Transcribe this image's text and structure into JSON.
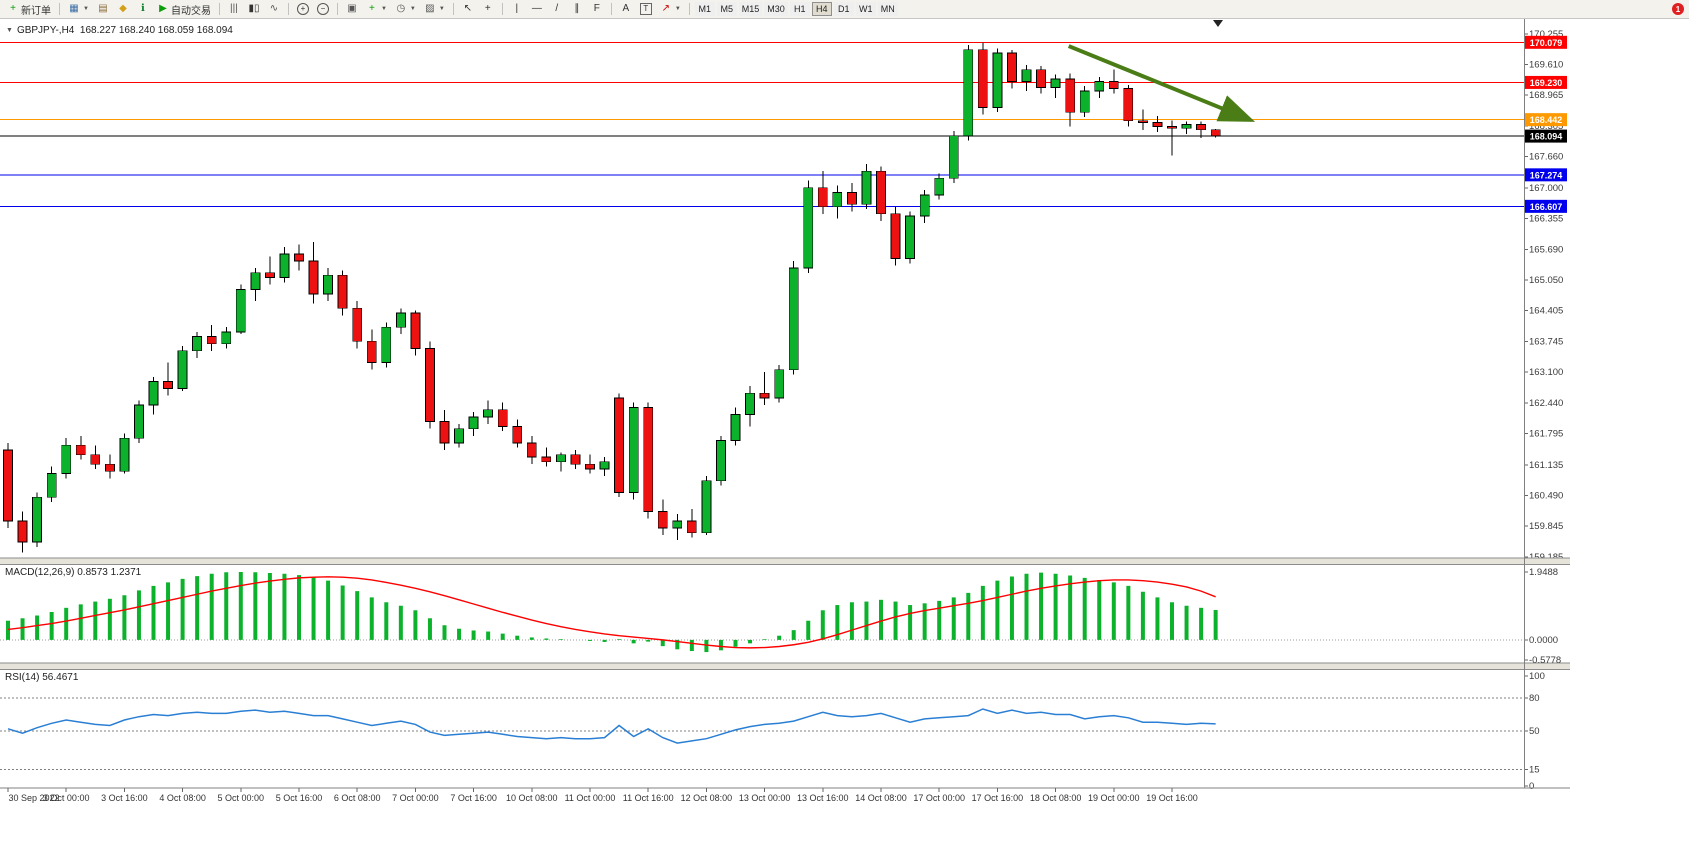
{
  "window": {
    "symbol": "GBPJPY-,H4",
    "ohlc_readout": {
      "open": "168.227",
      "high": "168.240",
      "low": "168.059",
      "close": "168.094"
    }
  },
  "panel_labels": {
    "main": "GBPJPY-,H4  168.227 168.240 168.059 168.094",
    "macd": "MACD(12,26,9) 0.8573 1.2371",
    "rsi": "RSI(14) 56.4671"
  },
  "toolbar": {
    "groups": [
      {
        "items": [
          {
            "name": "new-order-button",
            "icon": "new-order",
            "label": "新订单"
          }
        ]
      },
      {
        "items": [
          {
            "name": "new-chart-button",
            "icon": "new-chart",
            "dropdown": true
          },
          {
            "name": "profiles-button",
            "icon": "profiles"
          },
          {
            "name": "metaeditor-button",
            "icon": "metaeditor"
          },
          {
            "name": "terminal-button",
            "icon": "terminal"
          },
          {
            "name": "autotrading-button",
            "icon": "autotrading",
            "label": "自动交易"
          }
        ]
      },
      {
        "items": [
          {
            "name": "bar-chart-button",
            "icon": "bar-chart"
          },
          {
            "name": "candlestick-chart-button",
            "icon": "candlestick-chart"
          },
          {
            "name": "line-chart-button",
            "icon": "line-chart"
          }
        ]
      },
      {
        "items": [
          {
            "name": "zoom-in-button",
            "icon": "zoom-in"
          },
          {
            "name": "zoom-out-button",
            "icon": "zoom-out"
          }
        ]
      },
      {
        "items": [
          {
            "name": "tile-windows-button",
            "icon": "tile-windows"
          },
          {
            "name": "indicators-button",
            "icon": "indicators",
            "dropdown": true
          },
          {
            "name": "periods-button",
            "icon": "periods",
            "dropdown": true
          },
          {
            "name": "templates-button",
            "icon": "templates",
            "dropdown": true
          }
        ]
      },
      {
        "items": [
          {
            "name": "cursor-button",
            "icon": "cursor"
          },
          {
            "name": "crosshair-button",
            "icon": "crosshair"
          }
        ]
      },
      {
        "items": [
          {
            "name": "vertical-line-button",
            "icon": "vertical-line"
          },
          {
            "name": "horizontal-line-button",
            "icon": "horizontal-line"
          },
          {
            "name": "trendline-button",
            "icon": "trendline"
          },
          {
            "name": "channel-button",
            "icon": "channel"
          },
          {
            "name": "fibonacci-button",
            "icon": "fibonacci"
          }
        ]
      },
      {
        "items": [
          {
            "name": "text-button",
            "icon": "text"
          },
          {
            "name": "text-label-button",
            "icon": "text-label"
          },
          {
            "name": "arrows-button",
            "icon": "arrows",
            "dropdown": true
          }
        ]
      }
    ],
    "timeframes": [
      "M1",
      "M5",
      "M15",
      "M30",
      "H1",
      "H4",
      "D1",
      "W1",
      "MN"
    ],
    "active_timeframe": "H4",
    "notification_badge": "1"
  },
  "chart_data": [
    {
      "type": "candlestick",
      "title": "GBPJPY-,H4",
      "timeframe": "H4",
      "ohlc_readout": {
        "open": "168.227",
        "high": "168.240",
        "low": "168.059",
        "close": "168.094"
      },
      "ylim": [
        159.185,
        170.255
      ],
      "y_ticks": [
        "170.255",
        "169.610",
        "168.965",
        "168.305",
        "167.660",
        "167.000",
        "166.355",
        "165.690",
        "165.050",
        "164.405",
        "163.745",
        "163.100",
        "162.440",
        "161.795",
        "161.135",
        "160.490",
        "159.845",
        "159.185"
      ],
      "x_labels": [
        "30 Sep 2022",
        "3 Oct 00:00",
        "3 Oct 16:00",
        "4 Oct 08:00",
        "5 Oct 00:00",
        "5 Oct 16:00",
        "6 Oct 08:00",
        "7 Oct 00:00",
        "7 Oct 16:00",
        "10 Oct 08:00",
        "11 Oct 00:00",
        "11 Oct 16:00",
        "12 Oct 08:00",
        "13 Oct 00:00",
        "13 Oct 16:00",
        "14 Oct 08:00",
        "17 Oct 00:00",
        "17 Oct 16:00",
        "18 Oct 08:00",
        "19 Oct 00:00",
        "19 Oct 16:00"
      ],
      "candles_per_label": 4,
      "colors": {
        "bull": "#0cb22c",
        "bear": "#ee1111",
        "wick": "#000000"
      },
      "hlines": [
        {
          "value": 170.079,
          "label": "170.079",
          "color": "#ff0000",
          "text_color": "#ffffff"
        },
        {
          "value": 169.23,
          "label": "169.230",
          "color": "#ff0000",
          "text_color": "#ffffff"
        },
        {
          "value": 168.442,
          "label": "168.442",
          "color": "#ff9900",
          "text_color": "#ffffff"
        },
        {
          "value": 168.094,
          "label": "168.094",
          "color": "#000000",
          "text_color": "#ffffff",
          "role": "current-price"
        },
        {
          "value": 167.274,
          "label": "167.274",
          "color": "#0000ee",
          "text_color": "#ffffff"
        },
        {
          "value": 166.607,
          "label": "166.607",
          "color": "#0000ee",
          "text_color": "#ffffff"
        }
      ],
      "annotations": [
        {
          "type": "arrow",
          "color": "#4a7d16",
          "width": 4,
          "from": {
            "bar": 72.9,
            "price": 170.0
          },
          "to": {
            "bar": 85.2,
            "price": 168.46
          }
        }
      ],
      "candles": [
        [
          161.45,
          161.6,
          159.8,
          159.95
        ],
        [
          159.95,
          160.15,
          159.28,
          159.5
        ],
        [
          159.5,
          160.55,
          159.4,
          160.45
        ],
        [
          160.45,
          161.1,
          160.35,
          160.95
        ],
        [
          160.95,
          161.7,
          160.85,
          161.55
        ],
        [
          161.55,
          161.75,
          161.25,
          161.35
        ],
        [
          161.35,
          161.55,
          161.05,
          161.15
        ],
        [
          161.15,
          161.35,
          160.85,
          161.0
        ],
        [
          161.0,
          161.8,
          160.95,
          161.7
        ],
        [
          161.7,
          162.5,
          161.6,
          162.4
        ],
        [
          162.4,
          163.0,
          162.2,
          162.9
        ],
        [
          162.9,
          163.3,
          162.6,
          162.75
        ],
        [
          162.75,
          163.65,
          162.7,
          163.55
        ],
        [
          163.55,
          163.95,
          163.4,
          163.85
        ],
        [
          163.85,
          164.1,
          163.55,
          163.7
        ],
        [
          163.7,
          164.05,
          163.6,
          163.95
        ],
        [
          163.95,
          164.95,
          163.9,
          164.85
        ],
        [
          164.85,
          165.3,
          164.6,
          165.2
        ],
        [
          165.2,
          165.55,
          164.95,
          165.1
        ],
        [
          165.1,
          165.75,
          165.0,
          165.6
        ],
        [
          165.6,
          165.8,
          165.25,
          165.45
        ],
        [
          165.45,
          165.85,
          164.55,
          164.75
        ],
        [
          164.75,
          165.3,
          164.6,
          165.15
        ],
        [
          165.15,
          165.25,
          164.3,
          164.45
        ],
        [
          164.45,
          164.6,
          163.6,
          163.75
        ],
        [
          163.75,
          164.0,
          163.15,
          163.3
        ],
        [
          163.3,
          164.15,
          163.2,
          164.05
        ],
        [
          164.05,
          164.45,
          163.9,
          164.35
        ],
        [
          164.35,
          164.4,
          163.45,
          163.6
        ],
        [
          163.6,
          163.75,
          161.9,
          162.05
        ],
        [
          162.05,
          162.3,
          161.45,
          161.6
        ],
        [
          161.6,
          162.0,
          161.5,
          161.9
        ],
        [
          161.9,
          162.25,
          161.75,
          162.15
        ],
        [
          162.15,
          162.5,
          162.0,
          162.3
        ],
        [
          162.3,
          162.45,
          161.85,
          161.95
        ],
        [
          161.95,
          162.1,
          161.5,
          161.6
        ],
        [
          161.6,
          161.75,
          161.15,
          161.3
        ],
        [
          161.3,
          161.5,
          161.1,
          161.2
        ],
        [
          161.2,
          161.4,
          161.0,
          161.35
        ],
        [
          161.35,
          161.45,
          161.05,
          161.15
        ],
        [
          161.15,
          161.35,
          160.95,
          161.05
        ],
        [
          161.05,
          161.3,
          160.9,
          161.2
        ],
        [
          162.55,
          162.65,
          160.45,
          160.55
        ],
        [
          160.55,
          162.45,
          160.4,
          162.35
        ],
        [
          162.35,
          162.45,
          160.0,
          160.15
        ],
        [
          160.15,
          160.4,
          159.65,
          159.8
        ],
        [
          159.8,
          160.1,
          159.55,
          159.95
        ],
        [
          159.95,
          160.2,
          159.6,
          159.7
        ],
        [
          159.7,
          160.9,
          159.65,
          160.8
        ],
        [
          160.8,
          161.75,
          160.7,
          161.65
        ],
        [
          161.65,
          162.35,
          161.55,
          162.2
        ],
        [
          162.2,
          162.8,
          161.95,
          162.65
        ],
        [
          162.65,
          163.1,
          162.4,
          162.55
        ],
        [
          162.55,
          163.25,
          162.45,
          163.15
        ],
        [
          163.15,
          165.45,
          163.05,
          165.3
        ],
        [
          165.3,
          167.15,
          165.2,
          167.0
        ],
        [
          167.0,
          167.35,
          166.45,
          166.6
        ],
        [
          166.6,
          167.05,
          166.35,
          166.9
        ],
        [
          166.9,
          167.1,
          166.5,
          166.65
        ],
        [
          166.65,
          167.5,
          166.55,
          167.35
        ],
        [
          167.35,
          167.45,
          166.3,
          166.45
        ],
        [
          166.45,
          166.6,
          165.35,
          165.5
        ],
        [
          165.5,
          166.5,
          165.4,
          166.4
        ],
        [
          166.4,
          166.95,
          166.25,
          166.85
        ],
        [
          166.85,
          167.3,
          166.75,
          167.2
        ],
        [
          167.2,
          168.2,
          167.1,
          168.1
        ],
        [
          168.1,
          170.02,
          168.0,
          169.92
        ],
        [
          169.92,
          170.08,
          168.55,
          168.7
        ],
        [
          168.7,
          169.95,
          168.6,
          169.85
        ],
        [
          169.85,
          169.92,
          169.1,
          169.25
        ],
        [
          169.25,
          169.6,
          169.05,
          169.5
        ],
        [
          169.5,
          169.58,
          169.0,
          169.12
        ],
        [
          169.12,
          169.4,
          168.9,
          169.3
        ],
        [
          169.3,
          169.42,
          168.3,
          168.6
        ],
        [
          168.6,
          169.15,
          168.5,
          169.05
        ],
        [
          169.05,
          169.35,
          168.9,
          169.25
        ],
        [
          169.25,
          169.5,
          169.0,
          169.1
        ],
        [
          169.1,
          169.18,
          168.3,
          168.42
        ],
        [
          168.42,
          168.66,
          168.22,
          168.38
        ],
        [
          168.38,
          168.52,
          168.18,
          168.3
        ],
        [
          168.3,
          168.42,
          167.68,
          168.26
        ],
        [
          168.26,
          168.4,
          168.14,
          168.34
        ],
        [
          168.34,
          168.4,
          168.05,
          168.23
        ],
        [
          168.227,
          168.24,
          168.059,
          168.094
        ]
      ]
    },
    {
      "type": "bar",
      "name": "MACD",
      "label": "MACD(12,26,9)",
      "values_readout": [
        "0.8573",
        "1.2371"
      ],
      "ylim": [
        -0.5778,
        1.9488
      ],
      "y_ticks": [
        "1.9488",
        "0.0000",
        "-0.5778"
      ],
      "colors": {
        "histogram": "#0cb22c",
        "signal": "#ff0000"
      },
      "histogram": [
        0.55,
        0.62,
        0.7,
        0.8,
        0.92,
        1.02,
        1.1,
        1.18,
        1.28,
        1.42,
        1.55,
        1.65,
        1.75,
        1.83,
        1.9,
        1.94,
        1.95,
        1.94,
        1.92,
        1.9,
        1.86,
        1.8,
        1.7,
        1.56,
        1.4,
        1.22,
        1.08,
        0.98,
        0.85,
        0.62,
        0.42,
        0.32,
        0.27,
        0.24,
        0.18,
        0.12,
        0.07,
        0.04,
        0.02,
        0.0,
        -0.03,
        -0.06,
        0.02,
        -0.1,
        -0.05,
        -0.18,
        -0.27,
        -0.32,
        -0.35,
        -0.3,
        -0.2,
        -0.1,
        0.02,
        0.12,
        0.28,
        0.55,
        0.85,
        1.0,
        1.08,
        1.1,
        1.15,
        1.1,
        1.0,
        1.05,
        1.12,
        1.22,
        1.35,
        1.55,
        1.7,
        1.82,
        1.9,
        1.93,
        1.9,
        1.85,
        1.78,
        1.72,
        1.65,
        1.55,
        1.38,
        1.22,
        1.08,
        0.98,
        0.92,
        0.8573
      ],
      "signal": [
        0.3,
        0.35,
        0.41,
        0.47,
        0.54,
        0.62,
        0.7,
        0.78,
        0.86,
        0.95,
        1.04,
        1.13,
        1.22,
        1.31,
        1.4,
        1.48,
        1.56,
        1.63,
        1.69,
        1.74,
        1.78,
        1.8,
        1.81,
        1.8,
        1.77,
        1.72,
        1.65,
        1.57,
        1.48,
        1.38,
        1.27,
        1.15,
        1.03,
        0.91,
        0.79,
        0.68,
        0.57,
        0.47,
        0.38,
        0.3,
        0.23,
        0.17,
        0.12,
        0.08,
        0.04,
        0.0,
        -0.05,
        -0.1,
        -0.15,
        -0.19,
        -0.22,
        -0.23,
        -0.22,
        -0.19,
        -0.14,
        -0.07,
        0.03,
        0.15,
        0.28,
        0.41,
        0.54,
        0.66,
        0.76,
        0.84,
        0.91,
        0.98,
        1.05,
        1.13,
        1.22,
        1.31,
        1.4,
        1.48,
        1.55,
        1.61,
        1.66,
        1.7,
        1.72,
        1.72,
        1.7,
        1.66,
        1.6,
        1.52,
        1.4,
        1.2371
      ]
    },
    {
      "type": "line",
      "name": "RSI",
      "label": "RSI(14)",
      "value_readout": "56.4671",
      "ylim": [
        0,
        100
      ],
      "levels": [
        80,
        50,
        15
      ],
      "y_ticks": [
        "100",
        "80",
        "50",
        "15",
        "0"
      ],
      "colors": {
        "line": "#2a7fd4"
      },
      "values": [
        52,
        48,
        53,
        57,
        60,
        58,
        56,
        55,
        60,
        63,
        65,
        64,
        66,
        67,
        66,
        66,
        68,
        69,
        67,
        68,
        66,
        64,
        64,
        61,
        58,
        55,
        57,
        59,
        56,
        49,
        46,
        47,
        48,
        49,
        47,
        45,
        44,
        43,
        44,
        43,
        43,
        44,
        55,
        45,
        52,
        44,
        39,
        41,
        43,
        47,
        51,
        54,
        56,
        57,
        59,
        63,
        67,
        64,
        63,
        64,
        66,
        62,
        58,
        61,
        62,
        63,
        64,
        70,
        66,
        69,
        66,
        67,
        65,
        65,
        61,
        63,
        64,
        62,
        58,
        58,
        57,
        56,
        57,
        56.47
      ]
    }
  ]
}
